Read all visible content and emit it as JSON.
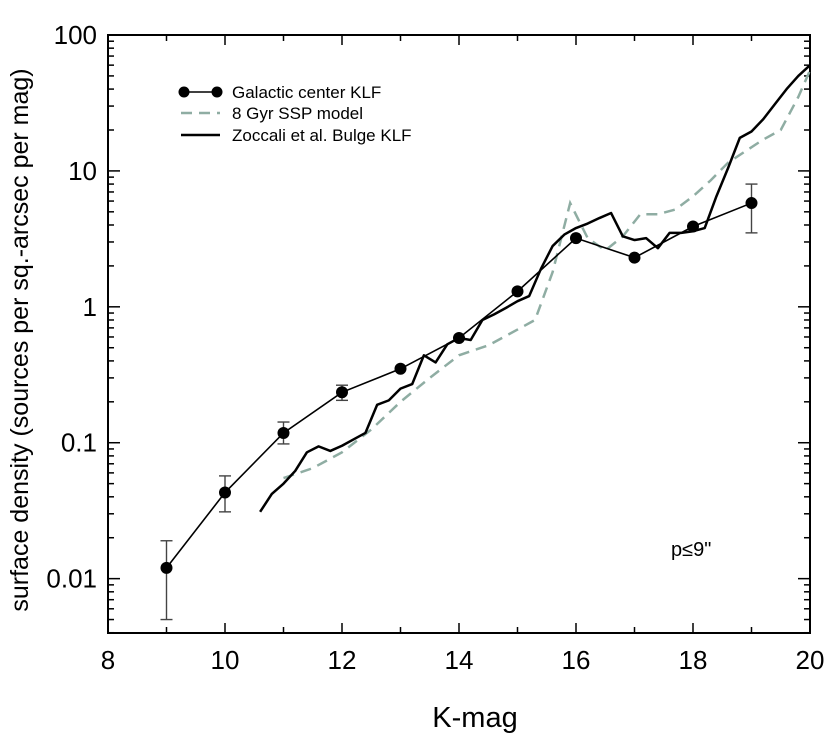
{
  "chart_data": {
    "type": "line",
    "title": "",
    "xlabel": "K-mag",
    "ylabel": "surface density (sources per sq.-arcsec per mag)",
    "xlim": [
      8,
      20
    ],
    "ylim": [
      0.004,
      100
    ],
    "yscale": "log",
    "grid": false,
    "legend_position": "top-left",
    "x_ticks": [
      8,
      10,
      12,
      14,
      16,
      18,
      20
    ],
    "x_tick_labels": [
      "8",
      "10",
      "12",
      "14",
      "16",
      "18",
      "20"
    ],
    "y_ticks": [
      0.01,
      0.1,
      1,
      10,
      100
    ],
    "y_tick_labels": [
      "0.01",
      "0.1",
      "1",
      "10",
      "100"
    ],
    "annotation": "p≤9\"",
    "series": [
      {
        "name": "Galactic center KLF",
        "style": "line-with-markers",
        "color": "#000000",
        "x": [
          9,
          10,
          11,
          12,
          13,
          14,
          15,
          16,
          17,
          18,
          19
        ],
        "y": [
          0.012,
          0.043,
          0.118,
          0.235,
          0.35,
          0.59,
          1.3,
          3.2,
          2.3,
          3.9,
          5.8
        ],
        "err_low": [
          0.005,
          0.031,
          0.098,
          0.205,
          null,
          null,
          null,
          null,
          null,
          null,
          3.5
        ],
        "err_high": [
          0.019,
          0.057,
          0.142,
          0.265,
          null,
          null,
          null,
          null,
          null,
          null,
          8.0
        ]
      },
      {
        "name": "8 Gyr SSP model",
        "style": "dashed",
        "color": "#8fada3",
        "x": [
          11.0,
          11.5,
          12.0,
          12.5,
          13.0,
          13.5,
          14.0,
          14.5,
          15.0,
          15.3,
          15.6,
          15.9,
          16.2,
          16.5,
          16.8,
          17.1,
          17.4,
          17.7,
          18.0,
          18.3,
          18.6,
          18.9,
          19.2,
          19.5,
          19.8,
          20.0
        ],
        "y": [
          0.055,
          0.065,
          0.085,
          0.125,
          0.2,
          0.3,
          0.44,
          0.52,
          0.68,
          0.8,
          1.8,
          5.8,
          3.2,
          2.6,
          3.3,
          4.8,
          4.8,
          5.2,
          6.5,
          8.5,
          11.5,
          14,
          17,
          20,
          35,
          55
        ]
      },
      {
        "name": "Zoccali et al. Bulge KLF",
        "style": "solid",
        "color": "#000000",
        "x": [
          10.6,
          10.8,
          11.0,
          11.2,
          11.4,
          11.6,
          11.8,
          12.0,
          12.2,
          12.4,
          12.6,
          12.8,
          13.0,
          13.2,
          13.4,
          13.6,
          13.8,
          14.0,
          14.2,
          14.4,
          14.6,
          14.8,
          15.0,
          15.2,
          15.4,
          15.6,
          15.8,
          16.0,
          16.2,
          16.4,
          16.6,
          16.8,
          17.0,
          17.2,
          17.4,
          17.6,
          17.8,
          18.0,
          18.2,
          18.4,
          18.6,
          18.8,
          19.0,
          19.2,
          19.4,
          19.6,
          19.8,
          20.0
        ],
        "y": [
          0.031,
          0.042,
          0.05,
          0.062,
          0.085,
          0.094,
          0.087,
          0.095,
          0.106,
          0.118,
          0.19,
          0.205,
          0.25,
          0.27,
          0.44,
          0.39,
          0.53,
          0.59,
          0.57,
          0.8,
          0.88,
          0.98,
          1.1,
          1.2,
          1.9,
          2.8,
          3.4,
          3.8,
          4.1,
          4.5,
          4.9,
          3.3,
          3.1,
          3.2,
          2.7,
          3.5,
          3.5,
          3.6,
          3.8,
          6.5,
          10.5,
          17.5,
          19.5,
          24,
          31,
          40,
          50,
          60
        ]
      }
    ]
  }
}
